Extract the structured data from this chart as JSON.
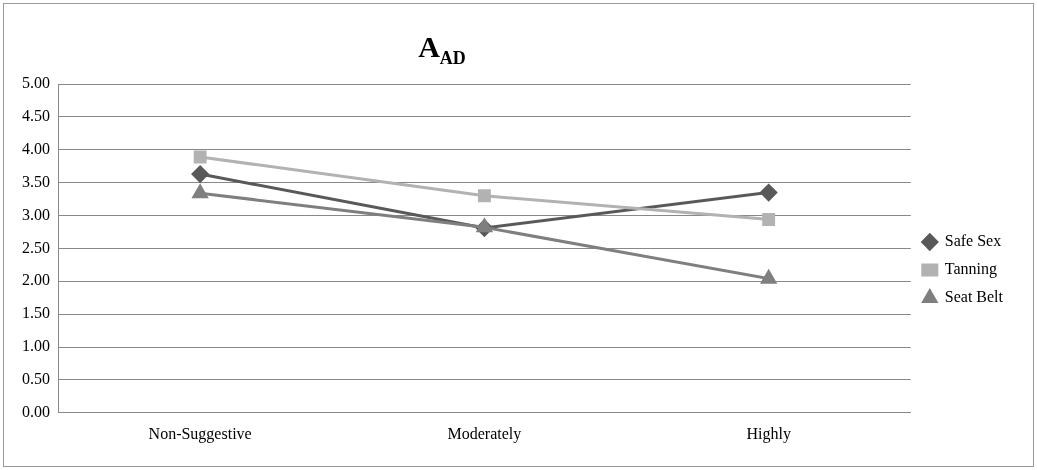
{
  "chart_data": {
    "type": "line",
    "title": "A$_{AD}$",
    "categories": [
      "Non-Suggestive",
      "Moderately",
      "Highly"
    ],
    "series": [
      {
        "name": "Safe Sex",
        "color": "#595959",
        "marker": "diamond",
        "values": [
          3.63,
          2.81,
          3.35
        ]
      },
      {
        "name": "Tanning",
        "color": "#b2b2b2",
        "marker": "square",
        "values": [
          3.89,
          3.3,
          2.94
        ]
      },
      {
        "name": "Seat Belt",
        "color": "#7f7f7f",
        "marker": "triangle",
        "values": [
          3.34,
          2.82,
          2.04
        ]
      }
    ],
    "ylim": [
      0,
      5
    ],
    "yticks": [
      {
        "value": 0,
        "label": "0.00"
      },
      {
        "value": 0.5,
        "label": "0.50"
      },
      {
        "value": 1,
        "label": "1.00"
      },
      {
        "value": 1.5,
        "label": "1.50"
      },
      {
        "value": 2,
        "label": "2.00"
      },
      {
        "value": 2.5,
        "label": "2.50"
      },
      {
        "value": 3,
        "label": "3.00"
      },
      {
        "value": 3.5,
        "label": "3.50"
      },
      {
        "value": 4,
        "label": "4.00"
      },
      {
        "value": 4.5,
        "label": "4.50"
      },
      {
        "value": 5,
        "label": "5.00"
      }
    ],
    "grid": "y",
    "legend": "right",
    "line_style": "solid"
  }
}
